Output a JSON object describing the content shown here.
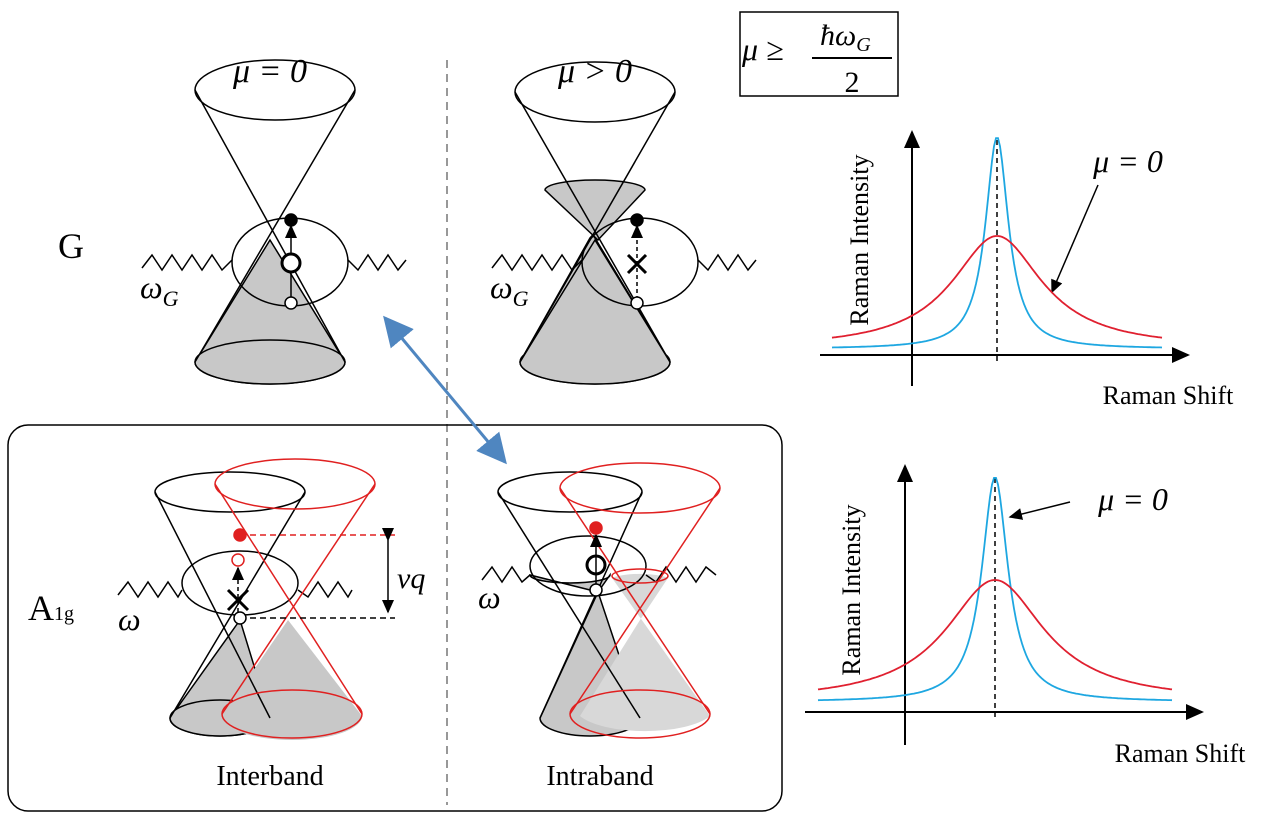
{
  "header": {
    "mu_zero": "μ = 0",
    "mu_positive": "μ > 0",
    "condition": {
      "lhs": "μ ≥",
      "numerator": "ħω",
      "numerator_sub": "G",
      "denominator": "2"
    }
  },
  "rows": {
    "g": {
      "label": "G",
      "phonon_left": {
        "symbol": "ω",
        "sub": "G"
      },
      "phonon_right": {
        "symbol": "ω",
        "sub": "G"
      }
    },
    "a1g": {
      "label": {
        "main": "A",
        "sub": "1g"
      },
      "phonon_left": "ω",
      "phonon_right": "ω",
      "shift": "vq",
      "interband": "Interband",
      "intraband": "Intraband"
    }
  },
  "plots": [
    {
      "y_label": "Raman Intensity",
      "x_label": "Raman Shift",
      "annotation": "μ = 0"
    },
    {
      "y_label": "Raman Intensity",
      "x_label": "Raman Shift",
      "annotation": "μ = 0"
    }
  ]
}
